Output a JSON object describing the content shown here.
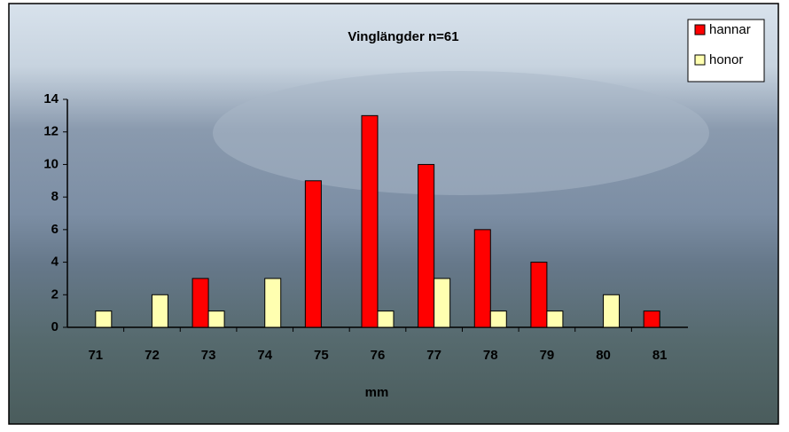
{
  "chart_data": {
    "type": "bar",
    "title": "Vinglängder n=61",
    "x_label": "mm",
    "categories": [
      "71",
      "72",
      "73",
      "74",
      "75",
      "76",
      "77",
      "78",
      "79",
      "80",
      "81"
    ],
    "series": [
      {
        "name": "hannar",
        "color": "#ff0000",
        "values": [
          0,
          0,
          3,
          0,
          9,
          13,
          10,
          6,
          4,
          0,
          1
        ]
      },
      {
        "name": "honor",
        "color": "#ffffb0",
        "values": [
          1,
          2,
          1,
          3,
          0,
          1,
          3,
          1,
          1,
          2,
          0
        ]
      }
    ],
    "ylim": [
      0,
      14
    ],
    "yticks": [
      0,
      2,
      4,
      6,
      8,
      10,
      12,
      14
    ],
    "legend": "top-right"
  }
}
